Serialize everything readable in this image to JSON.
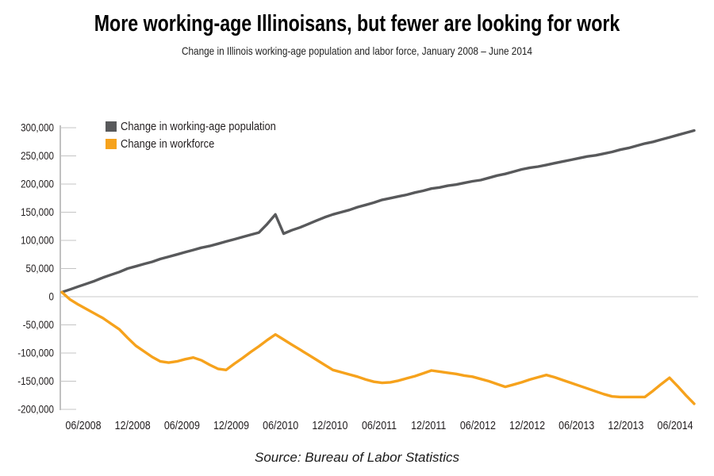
{
  "header": {
    "title": "More working-age Illinoisans, but fewer are looking for work",
    "subtitle": "Change in Illinois working-age population and labor force, January 2008 – June 2014"
  },
  "legend": {
    "items": [
      {
        "label": "Change in working-age population",
        "color": "#58595B"
      },
      {
        "label": "Change in workforce",
        "color": "#F6A21C"
      }
    ]
  },
  "chart_data": {
    "type": "line",
    "title": "More working-age Illinoisans, but fewer are looking for work",
    "subtitle": "Change in Illinois working-age population and labor force, January 2008 – June 2014",
    "x_start": "01/2008",
    "x_interval": "monthly",
    "x_tick_labels": [
      "06/2008",
      "12/2008",
      "06/2009",
      "12/2009",
      "06/2010",
      "12/2010",
      "06/2011",
      "12/2011",
      "06/2012",
      "12/2012",
      "06/2013",
      "12/2013",
      "06/2014"
    ],
    "y_tick_labels": [
      "300,000",
      "250,000",
      "200,000",
      "150,000",
      "100,000",
      "50,000",
      "0",
      "-50,000",
      "-100,000",
      "-150,000",
      "-200,000"
    ],
    "y_tick_values": [
      300000,
      250000,
      200000,
      150000,
      100000,
      50000,
      0,
      -50000,
      -100000,
      -150000,
      -200000
    ],
    "ylim": [
      -200000,
      300000
    ],
    "grid": "zero-line-only",
    "legend_position": "top-left-inside",
    "series": [
      {
        "name": "Change in working-age population",
        "color": "#58595B",
        "values": [
          8000,
          13000,
          18000,
          23000,
          28000,
          34000,
          39000,
          44000,
          50000,
          54000,
          58000,
          62000,
          67000,
          71000,
          75000,
          79000,
          83000,
          87000,
          90000,
          94000,
          98000,
          102000,
          106000,
          110000,
          114000,
          129000,
          146000,
          112000,
          118000,
          123000,
          129000,
          135000,
          141000,
          146000,
          150000,
          154000,
          159000,
          163000,
          167000,
          172000,
          175000,
          178000,
          181000,
          185000,
          188000,
          192000,
          194000,
          197000,
          199000,
          202000,
          205000,
          207000,
          211000,
          215000,
          218000,
          222000,
          226000,
          229000,
          231000,
          234000,
          237000,
          240000,
          243000,
          246000,
          249000,
          251000,
          254000,
          257000,
          261000,
          264000,
          268000,
          272000,
          275000,
          279000,
          283000,
          287000,
          291000,
          295000
        ]
      },
      {
        "name": "Change in workforce",
        "color": "#F6A21C",
        "values": [
          8000,
          -5000,
          -14000,
          -22000,
          -30000,
          -38000,
          -48000,
          -58000,
          -73000,
          -87000,
          -97000,
          -107000,
          -115000,
          -117000,
          -115000,
          -111000,
          -108000,
          -113000,
          -121000,
          -128000,
          -130000,
          -119000,
          -109000,
          -98000,
          -88000,
          -77000,
          -67000,
          -76000,
          -85000,
          -94000,
          -103000,
          -112000,
          -121000,
          -130000,
          -134000,
          -138000,
          -142000,
          -147000,
          -151000,
          -153000,
          -152000,
          -149000,
          -145000,
          -141000,
          -136000,
          -131000,
          -133000,
          -135000,
          -137000,
          -140000,
          -142000,
          -146000,
          -150000,
          -155000,
          -160000,
          -156000,
          -152000,
          -147000,
          -143000,
          -139000,
          -143000,
          -148000,
          -153000,
          -158000,
          -163000,
          -168000,
          -173000,
          -177000,
          -178000,
          -178000,
          -178000,
          -178000,
          -167000,
          -155000,
          -144000,
          -159000,
          -175000,
          -190000
        ]
      }
    ]
  },
  "footer": {
    "source": "Source: Bureau of Labor Statistics"
  }
}
